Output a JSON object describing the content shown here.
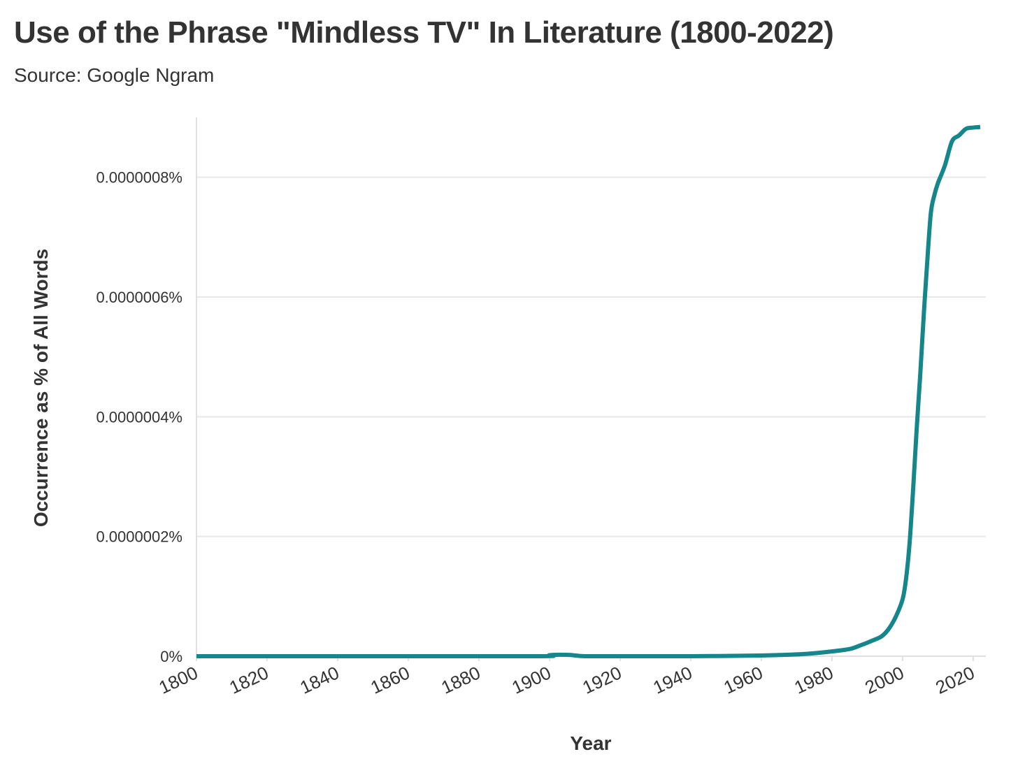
{
  "chart_data": {
    "type": "line",
    "title": "Use of the Phrase \"Mindless TV\" In Literature (1800-2022)",
    "subtitle": "Source: Google Ngram",
    "xlabel": "Year",
    "ylabel": "Occurrence as % of All Words",
    "xlim": [
      1800,
      2022
    ],
    "ylim": [
      0,
      9e-07
    ],
    "x_ticks": [
      1800,
      1820,
      1840,
      1860,
      1880,
      1900,
      1920,
      1940,
      1960,
      1980,
      2000,
      2020
    ],
    "y_ticks": [
      0,
      2e-07,
      4e-07,
      6e-07,
      8e-07
    ],
    "y_tick_labels": [
      "0%",
      "0.0000002%",
      "0.0000004%",
      "0.0000006%",
      "0.0000008%"
    ],
    "grid": "horizontal",
    "legend": "none",
    "colors": {
      "line": "#14868c",
      "grid": "#e8e8e8",
      "axis": "#e0e0e0",
      "text": "#333333"
    },
    "series": [
      {
        "x": [
          1800,
          1850,
          1897,
          1900,
          1903,
          1906,
          1910,
          1920,
          1940,
          1950,
          1960,
          1965,
          1970,
          1975,
          1980,
          1985,
          1988,
          1991,
          1994,
          1996,
          1998,
          2000,
          2001,
          2002,
          2003,
          2004,
          2005,
          2006,
          2007,
          2008,
          2009,
          2010,
          2012,
          2014,
          2016,
          2018,
          2020,
          2022
        ],
        "y": [
          0,
          0,
          0,
          1.8e-09,
          2.5e-09,
          2e-09,
          0,
          0,
          0,
          5e-10,
          1.2e-09,
          2e-09,
          3e-09,
          5e-09,
          8e-09,
          1.2e-08,
          1.8e-08,
          2.5e-08,
          3.3e-08,
          4.5e-08,
          6.5e-08,
          9.5e-08,
          1.3e-07,
          1.9e-07,
          2.8e-07,
          3.8e-07,
          4.7e-07,
          5.7e-07,
          6.6e-07,
          7.4e-07,
          7.7e-07,
          7.9e-07,
          8.2e-07,
          8.6e-07,
          8.7e-07,
          8.81e-07,
          8.83e-07,
          8.84e-07
        ]
      }
    ]
  }
}
